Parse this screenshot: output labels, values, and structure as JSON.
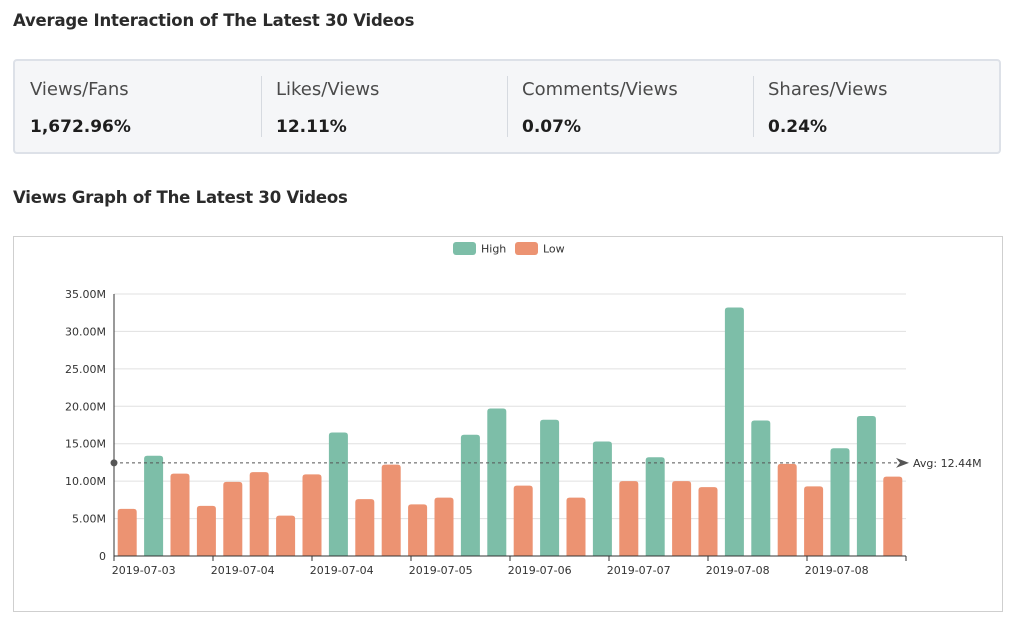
{
  "section1": {
    "title": "Average Interaction of The Latest 30 Videos"
  },
  "stats": [
    {
      "label": "Views/Fans",
      "value": "1,672.96%"
    },
    {
      "label": "Likes/Views",
      "value": "12.11%"
    },
    {
      "label": "Comments/Views",
      "value": "0.07%"
    },
    {
      "label": "Shares/Views",
      "value": "0.24%"
    }
  ],
  "section2": {
    "title": "Views Graph of The Latest 30 Videos"
  },
  "colors": {
    "high": "#7dbea8",
    "low": "#ec9372",
    "grid": "#e0e0e0",
    "axis": "#333333"
  },
  "chart_data": {
    "type": "bar",
    "legend": {
      "position": "top-center",
      "entries": [
        "High",
        "Low"
      ]
    },
    "x_tick_labels": [
      "2019-07-03",
      "2019-07-04",
      "2019-07-04",
      "2019-07-05",
      "2019-07-06",
      "2019-07-07",
      "2019-07-08",
      "2019-07-08"
    ],
    "y_tick_labels": [
      "0",
      "5.00M",
      "10.00M",
      "15.00M",
      "20.00M",
      "25.00M",
      "30.00M",
      "35.00M"
    ],
    "ylim": [
      0,
      35
    ],
    "grid": true,
    "bars": [
      {
        "series": "Low",
        "value": 6.3
      },
      {
        "series": "High",
        "value": 13.4
      },
      {
        "series": "Low",
        "value": 11.0
      },
      {
        "series": "Low",
        "value": 6.7
      },
      {
        "series": "Low",
        "value": 9.9
      },
      {
        "series": "Low",
        "value": 11.2
      },
      {
        "series": "Low",
        "value": 5.4
      },
      {
        "series": "Low",
        "value": 10.9
      },
      {
        "series": "High",
        "value": 16.5
      },
      {
        "series": "Low",
        "value": 7.6
      },
      {
        "series": "Low",
        "value": 12.2
      },
      {
        "series": "Low",
        "value": 6.9
      },
      {
        "series": "Low",
        "value": 7.8
      },
      {
        "series": "High",
        "value": 16.2
      },
      {
        "series": "High",
        "value": 19.7
      },
      {
        "series": "Low",
        "value": 9.4
      },
      {
        "series": "High",
        "value": 18.2
      },
      {
        "series": "Low",
        "value": 7.8
      },
      {
        "series": "High",
        "value": 15.3
      },
      {
        "series": "Low",
        "value": 10.0
      },
      {
        "series": "High",
        "value": 13.2
      },
      {
        "series": "Low",
        "value": 10.0
      },
      {
        "series": "Low",
        "value": 9.2
      },
      {
        "series": "High",
        "value": 33.2
      },
      {
        "series": "High",
        "value": 18.1
      },
      {
        "series": "Low",
        "value": 12.3
      },
      {
        "series": "Low",
        "value": 9.3
      },
      {
        "series": "High",
        "value": 14.4
      },
      {
        "series": "High",
        "value": 18.7
      },
      {
        "series": "Low",
        "value": 10.6
      }
    ],
    "average": {
      "value": 12.44,
      "label": "Avg: 12.44M"
    }
  }
}
